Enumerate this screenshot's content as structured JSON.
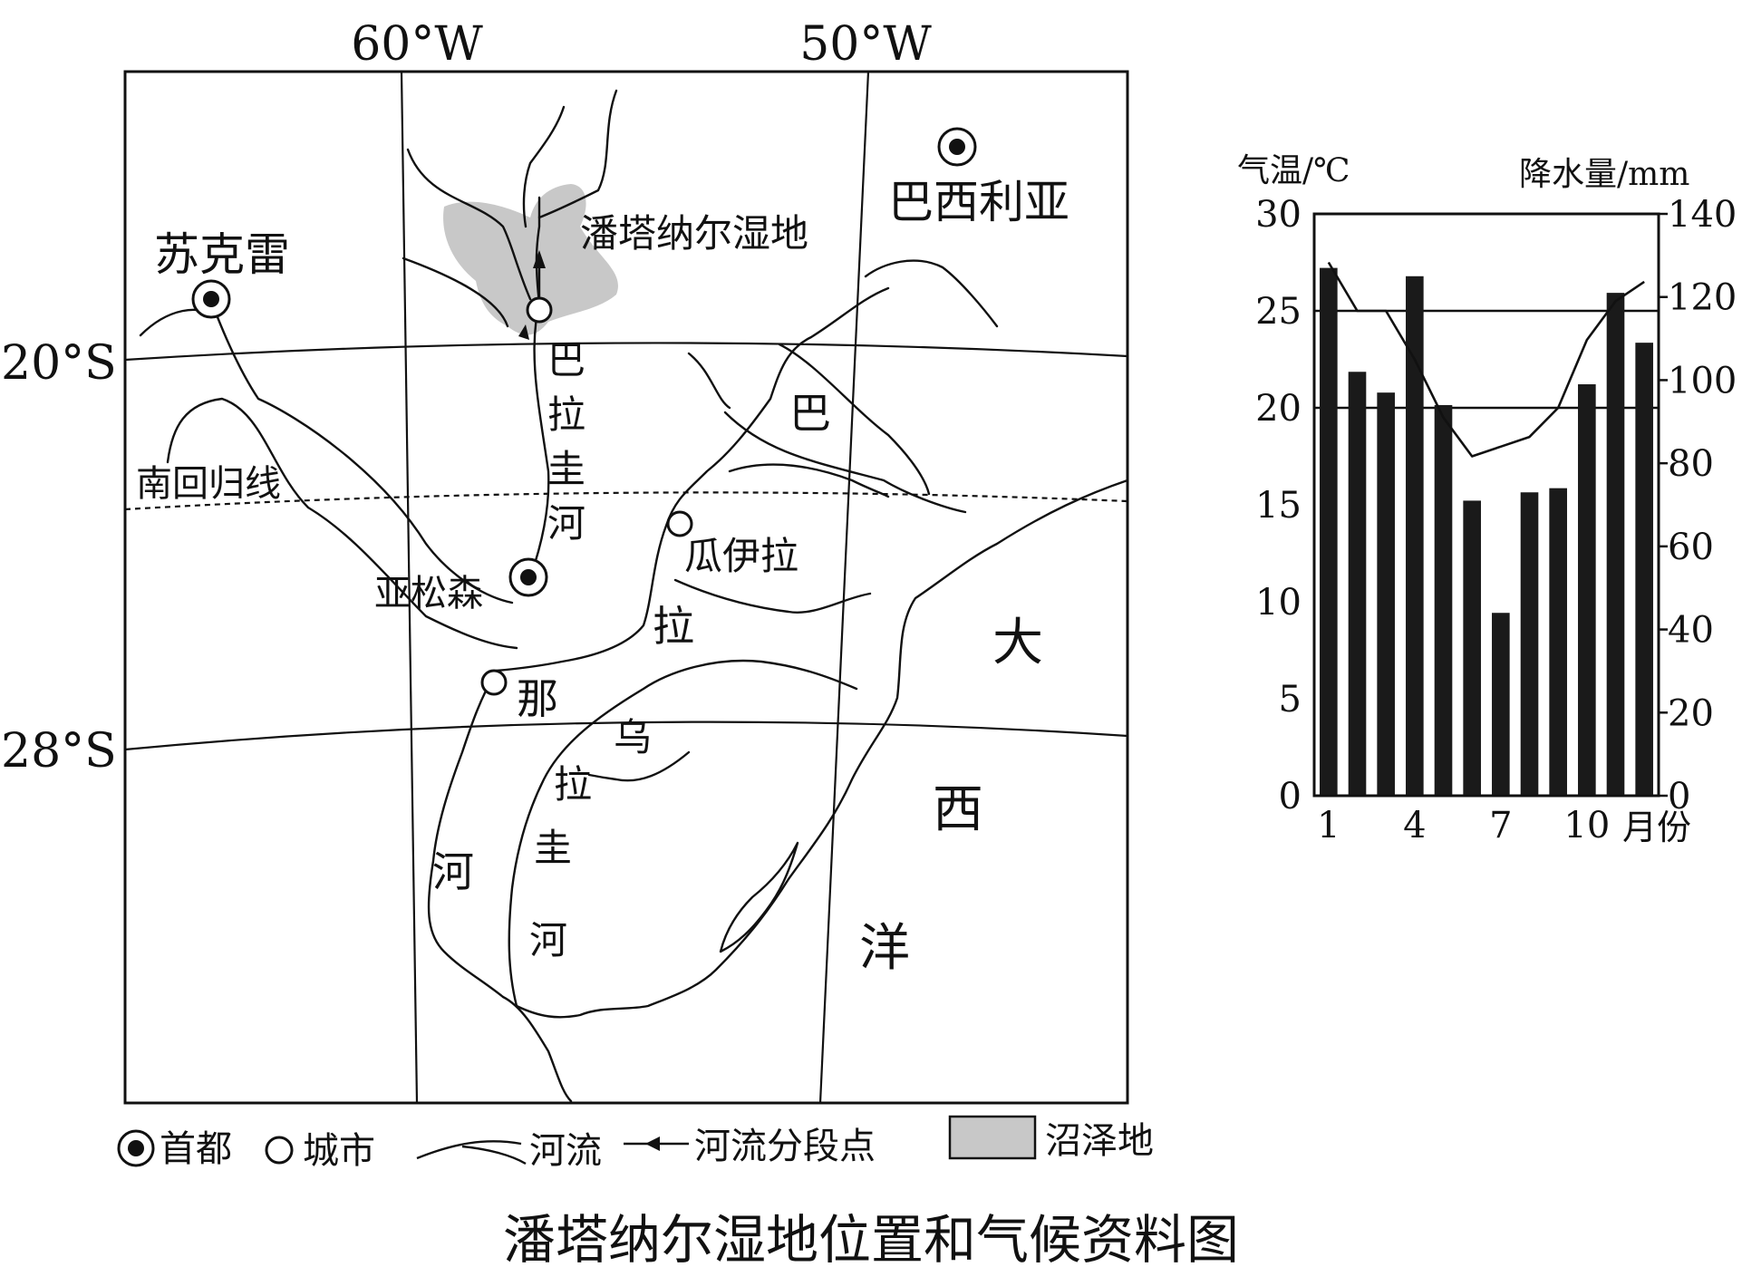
{
  "figure_title": "潘塔纳尔湿地位置和气候资料图",
  "map": {
    "longitudes": [
      "60°W",
      "50°W"
    ],
    "latitudes": [
      "20°S",
      "28°S"
    ],
    "tropic_label": "南回归线",
    "places": {
      "brasilia": "巴西利亚",
      "sucre": "苏克雷",
      "asuncion": "亚松森",
      "pantanal": "潘塔纳尔湿地",
      "guaira": "瓜伊拉"
    },
    "rivers": {
      "paraguay": [
        "巴",
        "拉",
        "圭",
        "河"
      ],
      "parana": [
        "巴",
        "拉",
        "那",
        "河"
      ],
      "uruguay": [
        "乌",
        "拉",
        "圭",
        "河"
      ]
    },
    "ocean": [
      "大",
      "西",
      "洋"
    ],
    "legend": {
      "capital": "首都",
      "city": "城市",
      "river": "河流",
      "river_segment": "河流分段点",
      "swamp": "沼泽地"
    }
  },
  "chart_data": {
    "type": "bar",
    "left_axis_label": "气温/℃",
    "right_axis_label": "降水量/mm",
    "x_axis_label": "月份",
    "x_tick_labels": [
      "1",
      "4",
      "7",
      "10"
    ],
    "left_ticks": [
      0,
      5,
      10,
      15,
      20,
      25,
      30
    ],
    "right_ticks": [
      0,
      20,
      40,
      60,
      80,
      100,
      120,
      140
    ],
    "temp_range": [
      0,
      30
    ],
    "precip_range": [
      0,
      140
    ],
    "grid_lines": [
      25,
      20
    ],
    "months": [
      1,
      2,
      3,
      4,
      5,
      6,
      7,
      8,
      9,
      10,
      11,
      12
    ],
    "precipitation": [
      127,
      102,
      97,
      125,
      94,
      71,
      44,
      73,
      74,
      99,
      121,
      109
    ],
    "temperature": [
      27.5,
      25,
      25,
      22.5,
      19.5,
      17.5,
      18,
      18.5,
      20,
      23.5,
      25.5,
      26.5
    ]
  }
}
